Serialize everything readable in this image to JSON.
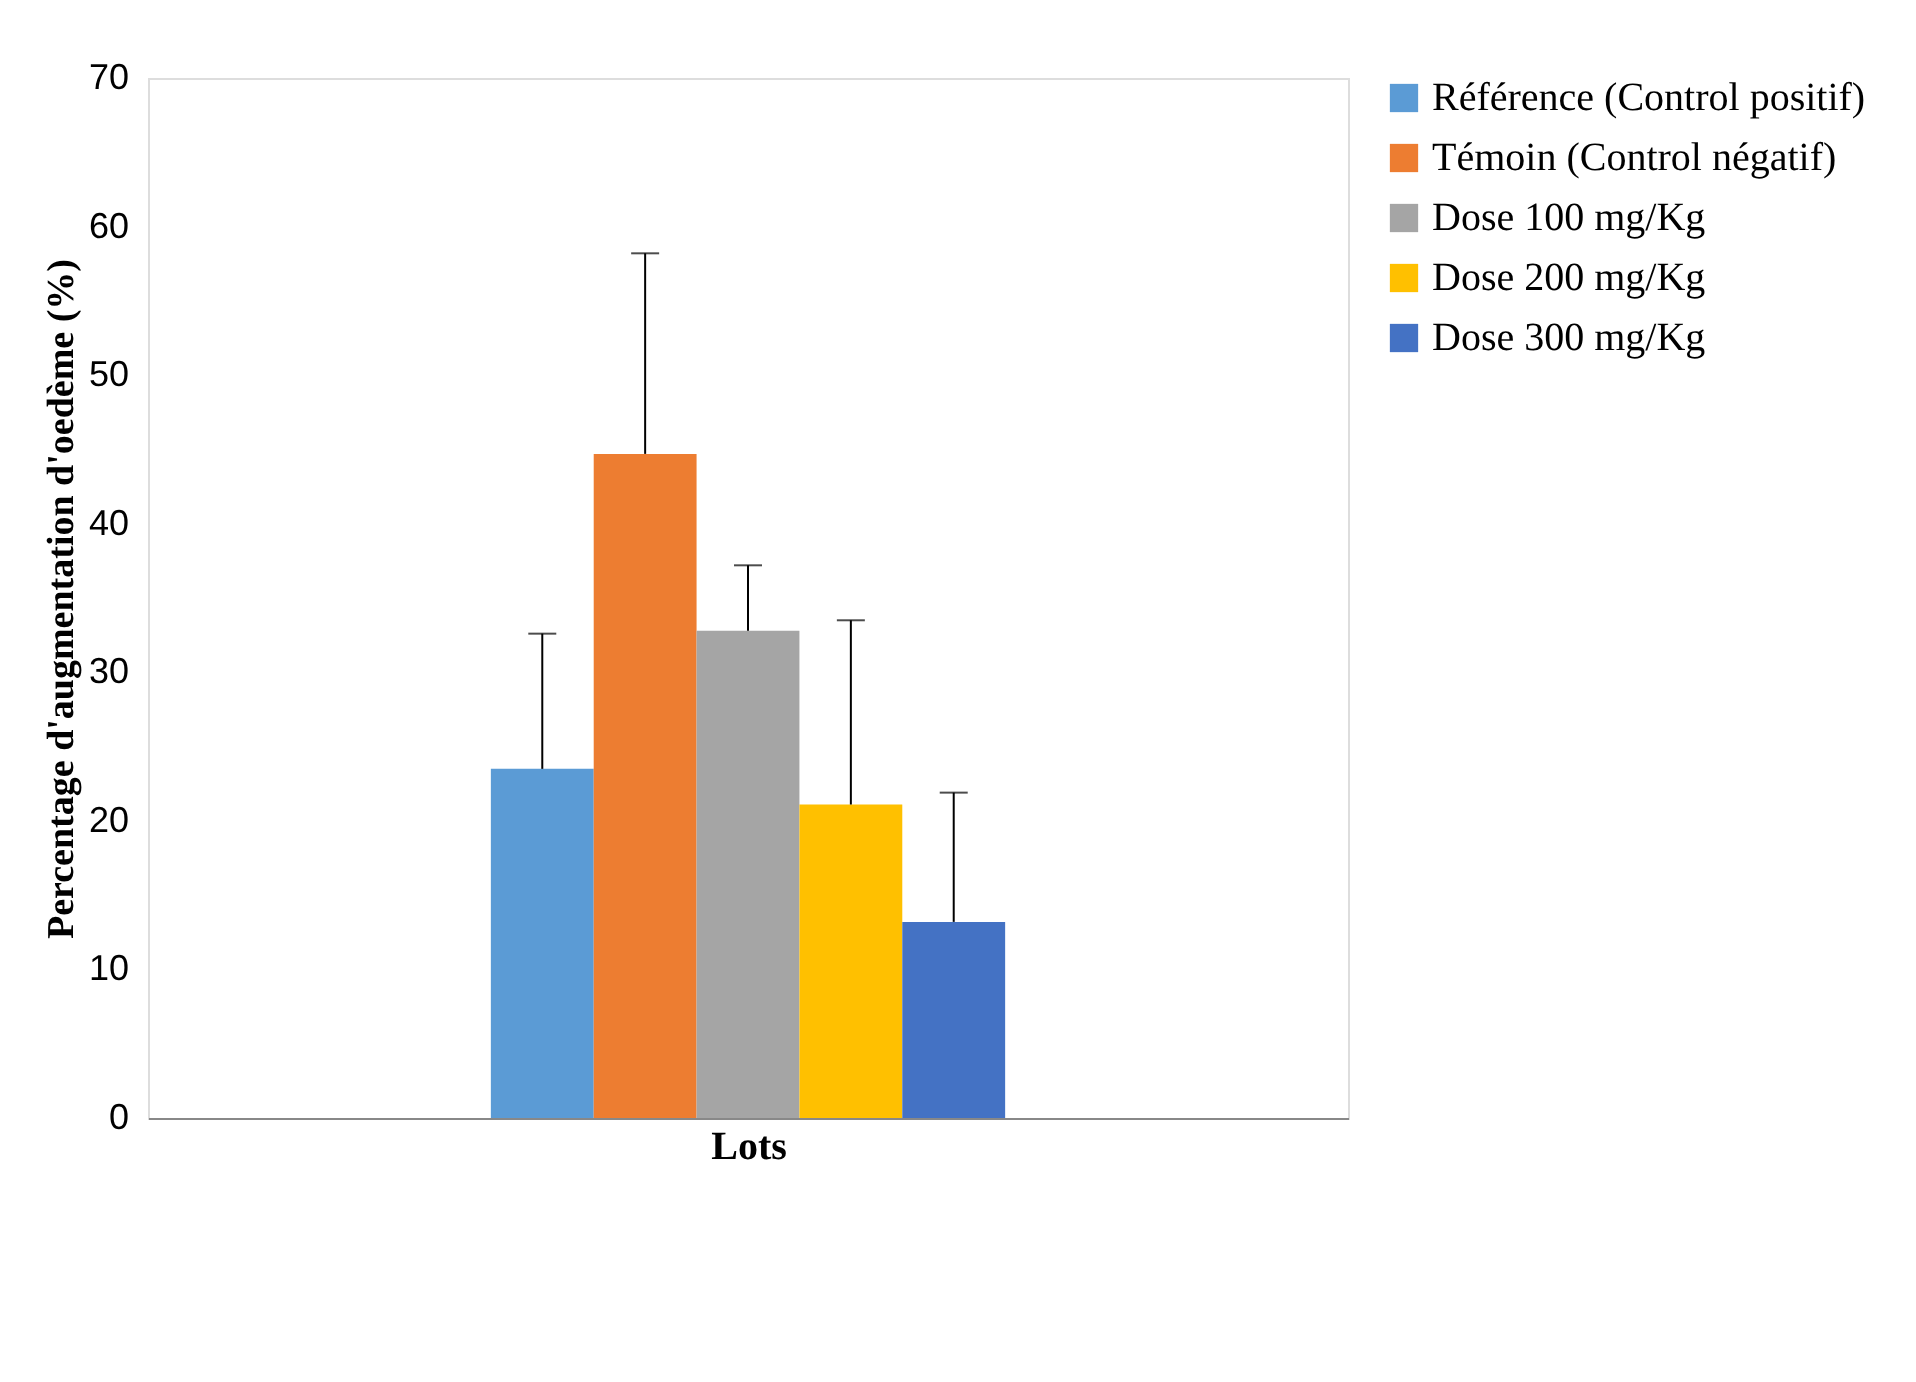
{
  "chart_data": {
    "type": "bar",
    "xlabel": "Lots",
    "ylabel": "Percentage d'augmentation d'oedème (%)",
    "categories": [
      null
    ],
    "series": [
      {
        "name": "Référence (Control positif)",
        "color": "#5b9bd5",
        "values": [
          23.5
        ],
        "errors": [
          [
            23.5,
            32.6
          ]
        ]
      },
      {
        "name": "Témoin (Control négatif)",
        "color": "#ed7d31",
        "values": [
          44.7
        ],
        "errors": [
          [
            44.7,
            58.2
          ]
        ]
      },
      {
        "name": "Dose 100 mg/Kg",
        "color": "#a5a5a5",
        "values": [
          32.8
        ],
        "errors": [
          [
            32.8,
            37.2
          ]
        ]
      },
      {
        "name": "Dose 200 mg/Kg",
        "color": "#ffc000",
        "values": [
          21.1
        ],
        "errors": [
          [
            21.1,
            33.5
          ]
        ]
      },
      {
        "name": "Dose 300  mg/Kg",
        "color": "#4472c4",
        "values": [
          13.2
        ],
        "errors": [
          [
            13.2,
            21.9
          ]
        ]
      }
    ],
    "ylim": [
      0,
      70
    ],
    "yticks": [
      0,
      10,
      20,
      30,
      40,
      50,
      60,
      70
    ],
    "grid": false,
    "legend": "right"
  }
}
